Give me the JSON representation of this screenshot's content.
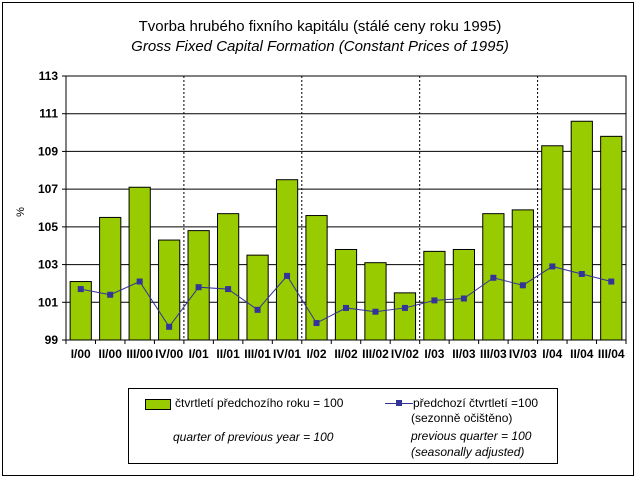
{
  "chart_data": {
    "type": "bar",
    "title": "Tvorba hrubého fixního kapitálu (stálé ceny roku 1995)",
    "subtitle": "Gross Fixed Capital Formation (Constant Prices of 1995)",
    "ylabel": "%",
    "ylim": [
      99,
      113
    ],
    "yticks": [
      99,
      101,
      103,
      105,
      107,
      109,
      111,
      113
    ],
    "categories": [
      "I/00",
      "II/00",
      "III/00",
      "IV/00",
      "I/01",
      "II/01",
      "III/01",
      "IV/01",
      "I/02",
      "II/02",
      "III/02",
      "IV/02",
      "I/03",
      "II/03",
      "III/03",
      "IV/03",
      "I/04",
      "II/04",
      "III/04"
    ],
    "series": [
      {
        "name": "čtvrtletí předchozího roku = 100",
        "name_en": "quarter of previous year = 100",
        "type": "bar",
        "color": "#99cc00",
        "values": [
          102.1,
          105.5,
          107.1,
          104.3,
          104.8,
          105.7,
          103.5,
          107.5,
          105.6,
          103.8,
          103.1,
          101.5,
          103.7,
          103.8,
          105.7,
          105.9,
          109.3,
          110.6,
          109.8
        ]
      },
      {
        "name": "předchozí čtvrtletí =100",
        "name_note": "(sezonně očištěno)",
        "name_en": "previous quarter = 100",
        "name_en_note": "(seasonally adjusted)",
        "type": "line",
        "color": "#333399",
        "values": [
          101.7,
          101.4,
          102.1,
          99.7,
          101.8,
          101.7,
          100.6,
          102.4,
          99.9,
          100.7,
          100.5,
          100.7,
          101.1,
          101.2,
          102.3,
          101.9,
          102.9,
          102.5,
          102.1
        ]
      }
    ],
    "legend": "bottom"
  }
}
